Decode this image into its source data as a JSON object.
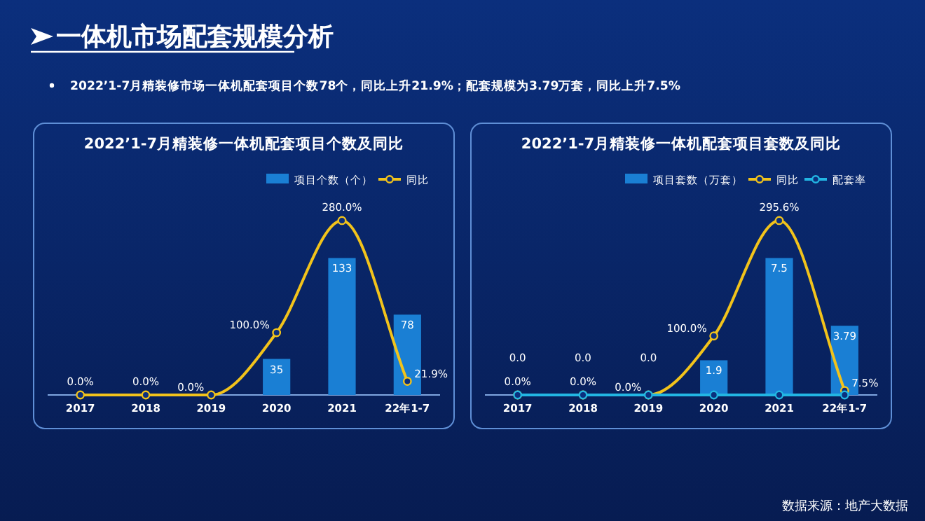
{
  "chart_data": [
    {
      "type": "other",
      "title": "一体机市场配套规模分析",
      "subtitle": "2022’1-7月精装修市场一体机配套项目个数78个，同比上升21.9%；配套规模为3.79万套，同比上升7.5%",
      "annotations": [
        "数据来源：地产大数据"
      ]
    },
    {
      "type": "bar",
      "title": "2022’1-7月精装修一体机配套项目个数及同比",
      "categories": [
        "2017",
        "2018",
        "2019",
        "2020",
        "2021",
        "22年1-7"
      ],
      "legend": "top right",
      "marker": "circle",
      "series": [
        {
          "name": "项目个数（个）",
          "type": "bar",
          "color": "#1a7fd4",
          "values": [
            0,
            0,
            0,
            35,
            133,
            78
          ],
          "value_labels": [
            null,
            null,
            null,
            "35",
            "133",
            "78"
          ]
        },
        {
          "name": "同比",
          "type": "line",
          "axis": "y2",
          "color": "#f2c31b",
          "values": [
            0,
            0,
            0,
            100,
            280,
            21.9
          ],
          "value_labels": [
            "0.0%",
            "0.0%",
            "0.0%",
            "100.0%",
            "280.0%",
            "21.9%"
          ]
        }
      ]
    },
    {
      "type": "bar",
      "title": "2022’1-7月精装修一体机配套项目套数及同比",
      "categories": [
        "2017",
        "2018",
        "2019",
        "2020",
        "2021",
        "22年1-7"
      ],
      "legend": "top right",
      "marker": "circle",
      "series": [
        {
          "name": "项目套数（万套）",
          "type": "bar",
          "color": "#1a7fd4",
          "values": [
            0,
            0,
            0,
            1.9,
            7.5,
            3.79
          ],
          "value_labels": [
            "0.0",
            "0.0",
            "0.0",
            "1.9",
            "7.5",
            "3.79"
          ]
        },
        {
          "name": "同比",
          "type": "line",
          "axis": "y2",
          "color": "#f2c31b",
          "values": [
            0,
            0,
            0,
            100,
            295.6,
            7.5
          ],
          "value_labels": [
            "0.0%",
            "0.0%",
            "0.0%",
            "100.0%",
            "295.6%",
            "7.5%"
          ]
        },
        {
          "name": "配套率",
          "type": "line",
          "axis": "y2",
          "color": "#22b6e3",
          "values": [
            0,
            0,
            0,
            0,
            0,
            0
          ]
        }
      ]
    }
  ]
}
